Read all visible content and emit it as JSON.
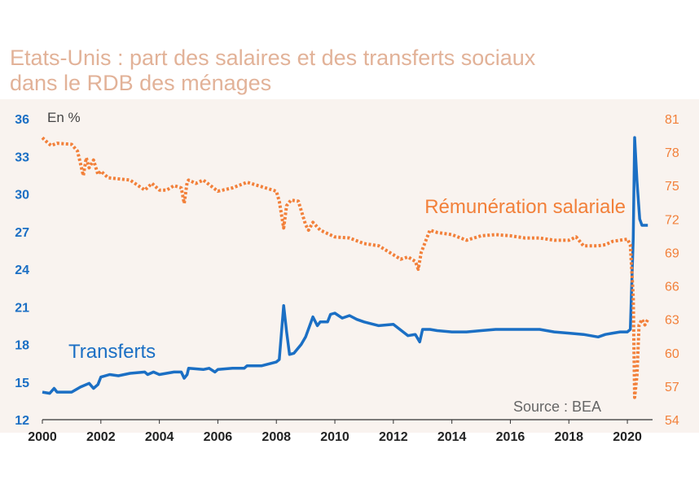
{
  "title_line1": "Etats-Unis : part des salaires et des transferts  sociaux",
  "title_line2": "dans le RDB des ménages",
  "colors": {
    "transferts": "#1b6fc4",
    "remuneration": "#f2803a",
    "title": "#e2b298",
    "background": "#f9f3ef"
  },
  "chart_data": {
    "type": "line",
    "unit_label": "En %",
    "source": "Source : BEA",
    "x_ticks": [
      "2000",
      "2002",
      "2004",
      "2006",
      "2008",
      "2010",
      "2012",
      "2014",
      "2016",
      "2018",
      "2020"
    ],
    "xlim": [
      2000,
      2020.75
    ],
    "y_left": {
      "ticks": [
        "12",
        "15",
        "18",
        "21",
        "24",
        "27",
        "30",
        "33",
        "36"
      ],
      "ylim": [
        12,
        36
      ]
    },
    "y_right": {
      "ticks": [
        "54",
        "57",
        "60",
        "63",
        "66",
        "69",
        "72",
        "75",
        "78",
        "81"
      ],
      "ylim": [
        54,
        81
      ]
    },
    "series": [
      {
        "name": "Transferts",
        "axis": "left",
        "style": "solid",
        "x": [
          2000,
          2000.25,
          2000.4,
          2000.5,
          2000.6,
          2001,
          2001.3,
          2001.6,
          2001.75,
          2001.9,
          2002,
          2002.3,
          2002.6,
          2003,
          2003.5,
          2003.6,
          2003.8,
          2004,
          2004.5,
          2004.75,
          2004.85,
          2004.95,
          2005,
          2005.5,
          2005.7,
          2005.9,
          2006,
          2006.5,
          2006.9,
          2007,
          2007.5,
          2008,
          2008.1,
          2008.25,
          2008.35,
          2008.45,
          2008.6,
          2008.85,
          2009,
          2009.25,
          2009.4,
          2009.5,
          2009.75,
          2009.85,
          2010,
          2010.25,
          2010.5,
          2010.75,
          2011,
          2011.5,
          2012,
          2012.5,
          2012.75,
          2012.9,
          2013,
          2013.25,
          2013.5,
          2014,
          2014.5,
          2015,
          2015.5,
          2016,
          2016.5,
          2017,
          2017.5,
          2018,
          2018.5,
          2019,
          2019.25,
          2019.5,
          2019.75,
          2020,
          2020.1,
          2020.2,
          2020.25,
          2020.33,
          2020.42,
          2020.5,
          2020.6,
          2020.7
        ],
        "values": [
          14.2,
          14.1,
          14.5,
          14.2,
          14.2,
          14.2,
          14.6,
          14.9,
          14.5,
          14.8,
          15.4,
          15.6,
          15.5,
          15.7,
          15.8,
          15.6,
          15.8,
          15.6,
          15.8,
          15.8,
          15.3,
          15.6,
          16.1,
          16.0,
          16.1,
          15.8,
          16.0,
          16.1,
          16.1,
          16.3,
          16.3,
          16.6,
          16.8,
          21.1,
          19.0,
          17.2,
          17.3,
          18.0,
          18.6,
          20.2,
          19.5,
          19.8,
          19.8,
          20.4,
          20.5,
          20.1,
          20.3,
          20.0,
          19.8,
          19.5,
          19.6,
          18.7,
          18.8,
          18.2,
          19.2,
          19.2,
          19.1,
          19.0,
          19.0,
          19.1,
          19.2,
          19.2,
          19.2,
          19.2,
          19.0,
          18.9,
          18.8,
          18.6,
          18.8,
          18.9,
          19.0,
          19.0,
          19.2,
          26.5,
          34.5,
          31.0,
          28.0,
          27.5,
          27.5,
          27.5
        ]
      },
      {
        "name": "Rémunération salariale",
        "axis": "right",
        "style": "dotted",
        "x": [
          2000,
          2000.2,
          2000.3,
          2000.5,
          2001,
          2001.2,
          2001.4,
          2001.5,
          2001.6,
          2001.75,
          2001.9,
          2002,
          2002.25,
          2003,
          2003.5,
          2003.75,
          2004,
          2004.25,
          2004.5,
          2004.75,
          2004.85,
          2004.95,
          2005,
          2005.25,
          2005.5,
          2006,
          2006.5,
          2007,
          2007.5,
          2008,
          2008.1,
          2008.25,
          2008.35,
          2008.5,
          2008.75,
          2009,
          2009.1,
          2009.25,
          2009.5,
          2010,
          2010.5,
          2011,
          2011.5,
          2012,
          2012.25,
          2012.5,
          2012.75,
          2012.85,
          2012.95,
          2013.25,
          2013.5,
          2014,
          2014.5,
          2015,
          2015.5,
          2016,
          2016.5,
          2017,
          2017.5,
          2018,
          2018.25,
          2018.5,
          2019,
          2019.25,
          2019.5,
          2020,
          2020.1,
          2020.2,
          2020.25,
          2020.33,
          2020.4,
          2020.5,
          2020.6,
          2020.7
        ],
        "values": [
          79.3,
          78.8,
          78.6,
          78.8,
          78.7,
          78.1,
          75.9,
          77.5,
          76.6,
          77.3,
          76.0,
          76.3,
          75.7,
          75.5,
          74.6,
          75.2,
          74.6,
          74.6,
          75.0,
          74.8,
          73.4,
          75.3,
          75.5,
          75.2,
          75.5,
          74.5,
          74.8,
          75.3,
          74.9,
          74.5,
          73.6,
          71.2,
          73.2,
          73.7,
          73.6,
          71.5,
          71.0,
          71.7,
          71.0,
          70.4,
          70.3,
          69.8,
          69.6,
          68.8,
          68.4,
          68.6,
          68.2,
          67.5,
          69.0,
          71.0,
          70.8,
          70.6,
          70.1,
          70.5,
          70.6,
          70.5,
          70.3,
          70.3,
          70.1,
          70.1,
          70.4,
          69.6,
          69.6,
          69.7,
          70.0,
          70.2,
          69.7,
          65.0,
          56.0,
          58.0,
          62.5,
          63.0,
          62.5,
          63.0
        ]
      }
    ],
    "annotations": {
      "transferts_label": "Transferts",
      "remuneration_label": "Rémunération salariale"
    }
  }
}
